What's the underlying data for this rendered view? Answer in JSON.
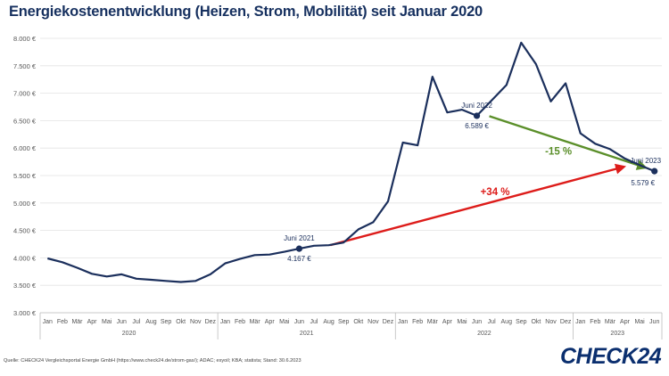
{
  "header": {
    "title": "Energiekostenentwicklung (Heizen, Strom, Mobilität) seit Januar 2020"
  },
  "footer": {
    "source": "Quelle: CHECK24 Vergleichsportal Energie GmbH (https://www.check24.de/strom-gas/); ADAC; esyoil; KBA; statista; Stand: 30.6.2023",
    "logo_text": "CHECK24"
  },
  "colors": {
    "line": "#1b2f5c",
    "grid": "#e3e3e3",
    "up_arrow": "#dd1c1a",
    "down_arrow": "#5b8f2a",
    "axis_text": "#555555"
  },
  "chart_data": {
    "type": "line",
    "title": "Energiekostenentwicklung (Heizen, Strom, Mobilität) seit Januar 2020",
    "xlabel": "",
    "ylabel": "",
    "ylim": [
      3000,
      8000
    ],
    "y_ticks": [
      3000,
      3500,
      4000,
      4500,
      5000,
      5500,
      6000,
      6500,
      7000,
      7500,
      8000
    ],
    "y_tick_labels": [
      "3.000 €",
      "3.500 €",
      "4.000 €",
      "4.500 €",
      "5.000 €",
      "5.500 €",
      "6.000 €",
      "6.500 €",
      "7.000 €",
      "7.500 €",
      "8.000 €"
    ],
    "grid": true,
    "months": [
      "Jan",
      "Feb",
      "Mär",
      "Apr",
      "Mai",
      "Jun",
      "Jul",
      "Aug",
      "Sep",
      "Okt",
      "Nov",
      "Dez",
      "Jan",
      "Feb",
      "Mär",
      "Apr",
      "Mai",
      "Jun",
      "Jul",
      "Aug",
      "Sep",
      "Okt",
      "Nov",
      "Dez",
      "Jan",
      "Feb",
      "Mär",
      "Apr",
      "Mai",
      "Jun",
      "Jul",
      "Aug",
      "Sep",
      "Okt",
      "Nov",
      "Dez",
      "Jan",
      "Feb",
      "Mär",
      "Apr",
      "Mai",
      "Jun"
    ],
    "years": [
      {
        "label": "2020",
        "months": 12
      },
      {
        "label": "2021",
        "months": 12
      },
      {
        "label": "2022",
        "months": 12
      },
      {
        "label": "2023",
        "months": 6
      }
    ],
    "series": [
      {
        "values": [
          3990,
          3920,
          3820,
          3710,
          3660,
          3700,
          3620,
          3600,
          3580,
          3560,
          3580,
          3700,
          3900,
          3980,
          4050,
          4060,
          4110,
          4167,
          4220,
          4230,
          4280,
          4520,
          4650,
          5030,
          6100,
          6050,
          7300,
          6650,
          6700,
          6589,
          6870,
          7150,
          7920,
          7530,
          6850,
          7180,
          6270,
          6080,
          5980,
          5810,
          5690,
          5579
        ]
      }
    ],
    "highlights": [
      {
        "month_index": 17,
        "label": "Juni 2021",
        "value_label": "4.167 €"
      },
      {
        "month_index": 29,
        "label": "Juni 2022",
        "value_label": "6.589 €"
      },
      {
        "month_index": 41,
        "label": "Juni 2023",
        "value_label": "5.579 €"
      }
    ],
    "annotations": [
      {
        "id": "increase",
        "text": "+34 %",
        "from_month": 17,
        "to_month": 41,
        "color": "#dd1c1a"
      },
      {
        "id": "decrease",
        "text": "-15 %",
        "from_month": 29,
        "to_month": 41,
        "color": "#5b8f2a"
      }
    ]
  }
}
